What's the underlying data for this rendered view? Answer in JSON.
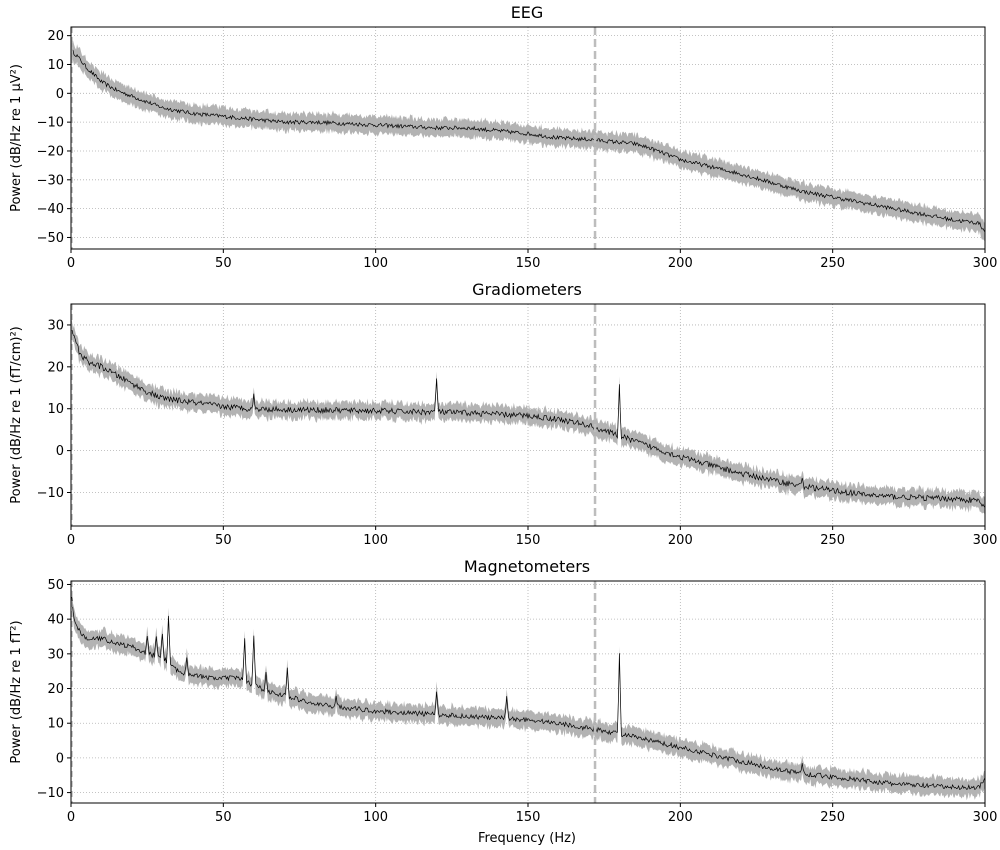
{
  "chart_data": [
    {
      "type": "line",
      "title": "EEG",
      "xlabel": "",
      "ylabel": "Power (dB/Hz re 1 μV²)",
      "xlim": [
        0,
        300
      ],
      "ylim": [
        -54,
        23
      ],
      "xticks": [
        0,
        50,
        100,
        150,
        200,
        250,
        300
      ],
      "yticks": [
        -50,
        -40,
        -30,
        -20,
        -10,
        0,
        10,
        20
      ],
      "grid": true,
      "vline_x": 172,
      "series": [
        {
          "x": [
            0,
            2,
            5,
            8,
            10,
            15,
            20,
            25,
            30,
            40,
            50,
            60,
            70,
            80,
            90,
            100,
            110,
            120,
            130,
            140,
            150,
            160,
            170,
            180,
            185,
            190,
            195,
            200,
            210,
            220,
            230,
            240,
            250,
            260,
            270,
            280,
            290,
            298,
            300
          ],
          "y": [
            15,
            13,
            9,
            6,
            4,
            1,
            -1,
            -3,
            -5,
            -7,
            -8,
            -9,
            -10,
            -10,
            -10.5,
            -11,
            -11.5,
            -12,
            -12,
            -13,
            -14,
            -15.5,
            -16,
            -17,
            -17.5,
            -19,
            -21,
            -23,
            -25.5,
            -28,
            -31,
            -34,
            -36,
            -38,
            -40,
            -42,
            -44,
            -45,
            -48
          ],
          "band": 3
        }
      ],
      "peaks": []
    },
    {
      "type": "line",
      "title": "Gradiometers",
      "xlabel": "",
      "ylabel": "Power (dB/Hz re 1 (fT/cm)²)",
      "xlim": [
        0,
        300
      ],
      "ylim": [
        -18,
        35
      ],
      "xticks": [
        0,
        50,
        100,
        150,
        200,
        250,
        300
      ],
      "yticks": [
        -10,
        0,
        10,
        20,
        30
      ],
      "grid": true,
      "vline_x": 172,
      "series": [
        {
          "x": [
            0,
            1,
            3,
            6,
            10,
            15,
            20,
            25,
            30,
            40,
            50,
            60,
            70,
            80,
            90,
            100,
            110,
            120,
            130,
            140,
            150,
            160,
            170,
            180,
            190,
            200,
            210,
            220,
            230,
            240,
            250,
            260,
            270,
            280,
            290,
            298,
            300
          ],
          "y": [
            30,
            27,
            23,
            21,
            20,
            18,
            16,
            14,
            12.5,
            11.5,
            10.5,
            10,
            9.8,
            9.7,
            9.6,
            9.5,
            9.3,
            9.2,
            9,
            8.7,
            8.3,
            7.5,
            6,
            3.5,
            1,
            -1.5,
            -3.5,
            -5.5,
            -7,
            -8.5,
            -9.5,
            -10.5,
            -11,
            -11.3,
            -11.5,
            -12,
            -14
          ],
          "band": 2
        }
      ],
      "peaks": [
        [
          60,
          3
        ],
        [
          120,
          8
        ],
        [
          180,
          12
        ],
        [
          240,
          2
        ]
      ]
    },
    {
      "type": "line",
      "title": "Magnetometers",
      "xlabel": "Frequency (Hz)",
      "ylabel": "Power (dB/Hz re 1 fT²)",
      "xlim": [
        0,
        300
      ],
      "ylim": [
        -13,
        51
      ],
      "xticks": [
        0,
        50,
        100,
        150,
        200,
        250,
        300
      ],
      "yticks": [
        -10,
        0,
        10,
        20,
        30,
        40,
        50
      ],
      "grid": true,
      "vline_x": 172,
      "series": [
        {
          "x": [
            0,
            1,
            3,
            6,
            10,
            15,
            20,
            25,
            30,
            35,
            40,
            45,
            50,
            55,
            60,
            65,
            70,
            80,
            90,
            100,
            110,
            120,
            130,
            140,
            150,
            160,
            170,
            180,
            190,
            200,
            210,
            220,
            230,
            240,
            250,
            260,
            270,
            280,
            290,
            298,
            300
          ],
          "y": [
            48,
            40,
            36,
            34,
            34.5,
            33,
            32,
            30,
            29,
            25,
            24,
            23,
            23,
            23,
            21,
            19,
            18,
            15.5,
            14.5,
            13.5,
            13,
            12.5,
            12,
            11.5,
            11,
            10,
            8.5,
            7,
            5,
            3,
            1,
            -1,
            -3,
            -4.5,
            -5.5,
            -6.5,
            -7.5,
            -8,
            -8.5,
            -8.5,
            -6
          ],
          "band": 2.5
        }
      ],
      "peaks": [
        [
          25,
          5
        ],
        [
          28,
          6
        ],
        [
          30,
          7
        ],
        [
          32,
          14
        ],
        [
          38,
          5
        ],
        [
          57,
          12
        ],
        [
          60,
          14
        ],
        [
          64,
          6
        ],
        [
          71,
          8
        ],
        [
          87,
          3
        ],
        [
          120,
          6
        ],
        [
          143,
          6
        ],
        [
          180,
          23
        ],
        [
          240,
          3
        ]
      ]
    }
  ],
  "colors": {
    "band": "#b3b3b3",
    "line": "#000000",
    "vline": "#bdbdbd",
    "grid": "#b0b0b0"
  }
}
